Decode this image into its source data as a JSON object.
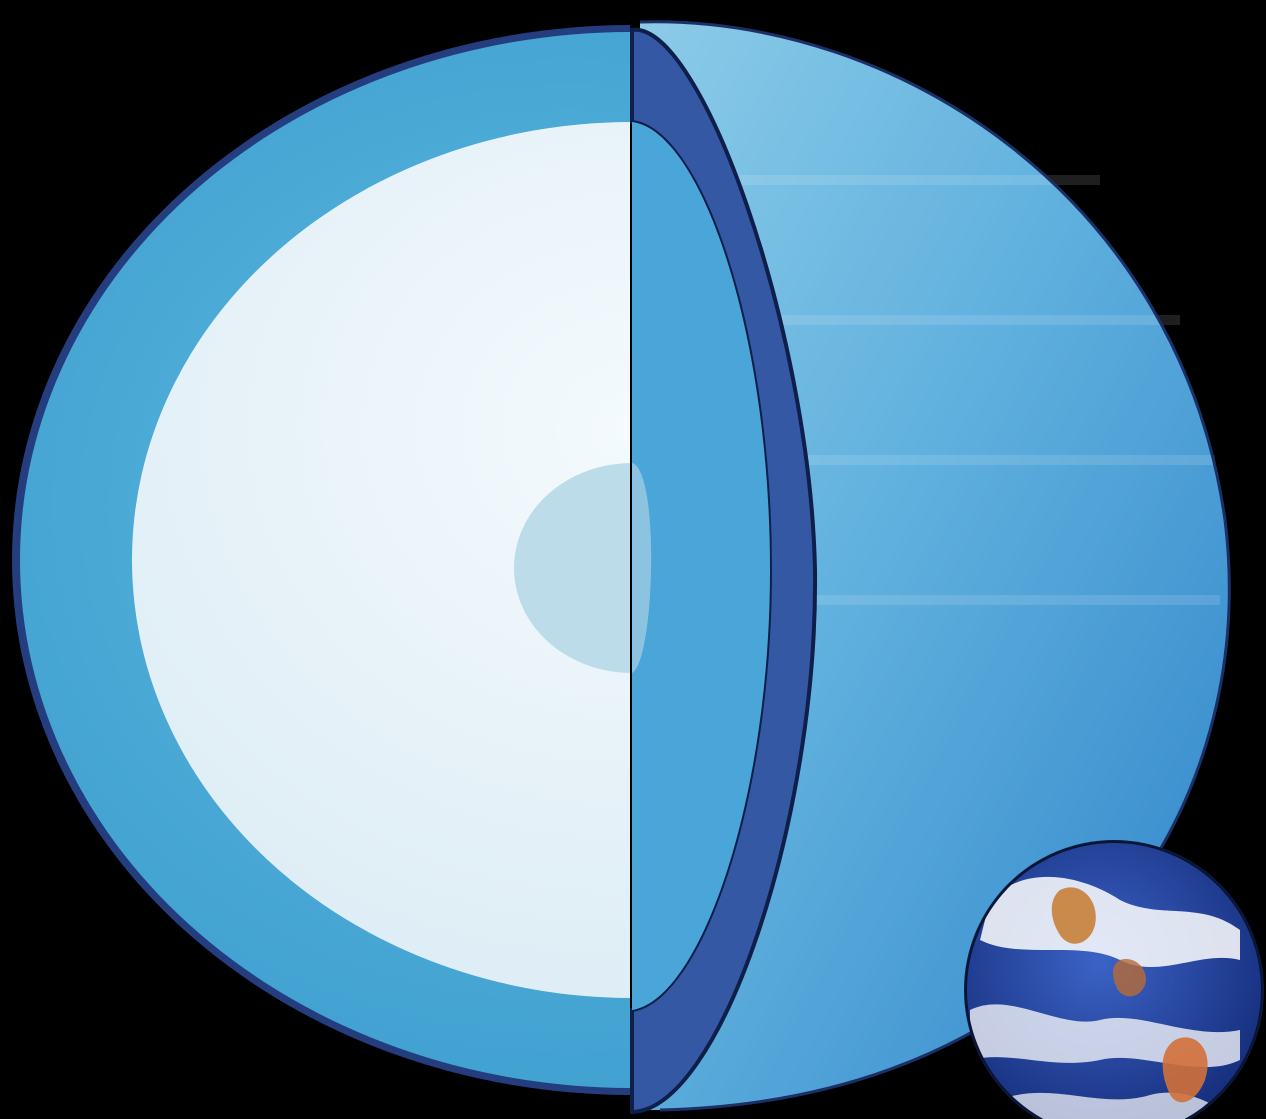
{
  "figure": {
    "background": "#000000",
    "colors": {
      "outer_layer": "#4fb0d9",
      "outer_layer_shade": "#3c96c8",
      "mantle": "#e8f4fa",
      "core": "#b9dcea",
      "crust_edge": "#2f4f9a",
      "crust_dark": "#3558a4",
      "planet_surface_light": "#7ec4e6",
      "planet_surface_dark": "#3a8fcf",
      "earth_ocean": "#1d3f9e",
      "earth_cloud": "#ffffff",
      "earth_land": "#c8803a"
    }
  }
}
